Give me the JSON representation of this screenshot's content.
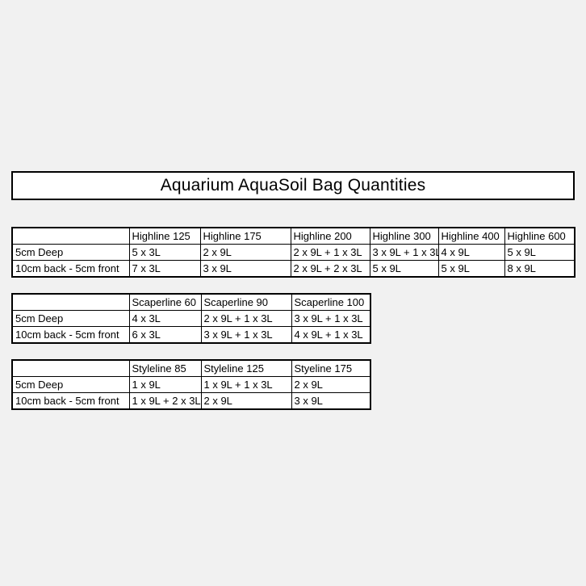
{
  "page": {
    "title": "Aquarium AquaSoil Bag Quantities",
    "background_color": "#f1f1f1",
    "table_background_color": "#ffffff",
    "border_color": "#000000"
  },
  "tables": [
    {
      "name": "Highline",
      "columns": [
        "",
        "Highline 125",
        "Highline 175",
        "Highline 200",
        "Highline 300",
        "Highline 400",
        "Highline 600"
      ],
      "rows": [
        {
          "label": "5cm Deep",
          "values": [
            "5 x 3L",
            "2 x 9L",
            "2 x 9L + 1 x 3L",
            "3 x 9L + 1 x 3L",
            "4 x 9L",
            "5 x 9L"
          ]
        },
        {
          "label": "10cm back - 5cm front",
          "values": [
            "7 x 3L",
            "3 x 9L",
            "2 x 9L + 2 x 3L",
            "5 x 9L",
            "5 x 9L",
            "8 x 9L"
          ]
        }
      ]
    },
    {
      "name": "Scaperline",
      "columns": [
        "",
        "Scaperline 60",
        "Scaperline 90",
        "Scaperline 100"
      ],
      "rows": [
        {
          "label": "5cm Deep",
          "values": [
            "4 x 3L",
            "2 x 9L + 1 x 3L",
            "3 x 9L + 1 x 3L"
          ]
        },
        {
          "label": "10cm back - 5cm front",
          "values": [
            "6 x 3L",
            "3 x 9L + 1 x 3L",
            "4 x 9L + 1 x 3L"
          ]
        }
      ]
    },
    {
      "name": "Styleline",
      "columns": [
        "",
        "Styleline 85",
        "Styleline 125",
        "Styeline 175"
      ],
      "rows": [
        {
          "label": "5cm Deep",
          "values": [
            "1 x 9L",
            "1 x 9L + 1 x 3L",
            "2 x 9L"
          ]
        },
        {
          "label": "10cm back - 5cm front",
          "values": [
            "1 x 9L + 2 x 3L",
            "2 x 9L",
            "3 x 9L"
          ]
        }
      ]
    }
  ]
}
